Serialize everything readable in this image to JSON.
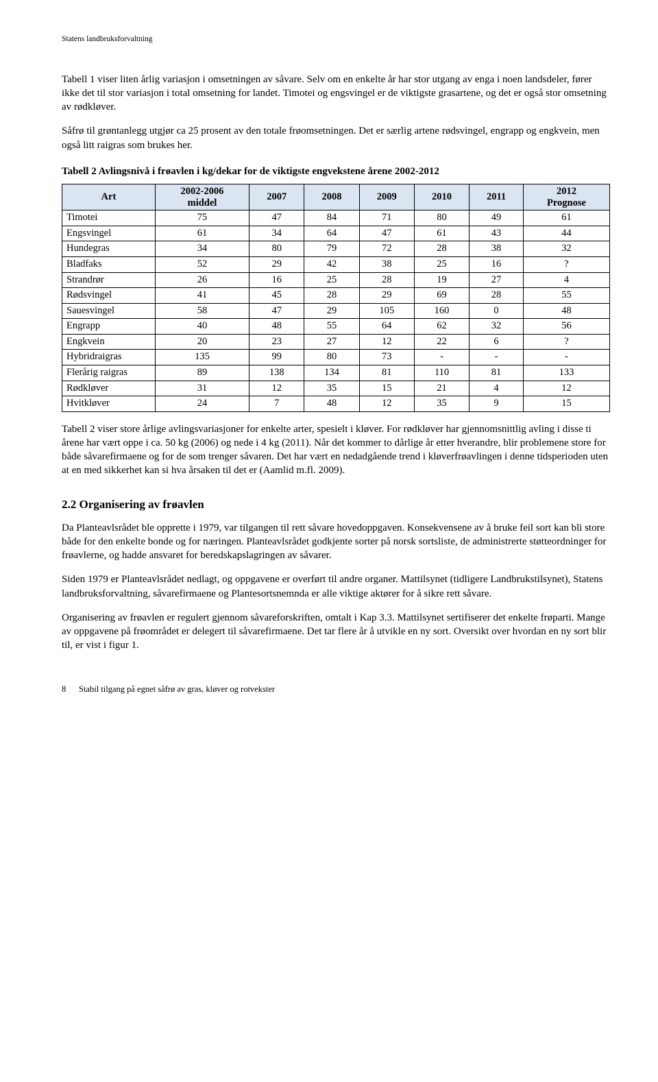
{
  "header": {
    "org": "Statens landbruksforvaltning"
  },
  "para1": "Tabell 1 viser liten årlig variasjon i omsetningen av såvare. Selv om en enkelte år har stor utgang av enga i noen landsdeler, fører ikke det til stor variasjon i total omsetning for landet. Timotei og engsvingel er de viktigste grasartene, og det er også stor omsetning av rødkløver.",
  "para2": "Såfrø til grøntanlegg utgjør ca 25 prosent av den totale frøomsetningen. Det er særlig artene rødsvingel, engrapp og engkvein, men også litt raigras som brukes her.",
  "table": {
    "title": "Tabell 2 Avlingsnivå i frøavlen i kg/dekar for de viktigste engvekstene årene 2002-2012",
    "columns": {
      "c0": "Art",
      "c1a": "2002-2006",
      "c1b": "middel",
      "c2": "2007",
      "c3": "2008",
      "c4": "2009",
      "c5": "2010",
      "c6": "2011",
      "c7a": "2012",
      "c7b": "Prognose"
    },
    "rows": [
      {
        "label": "Timotei",
        "v": [
          "75",
          "47",
          "84",
          "71",
          "80",
          "49",
          "61"
        ]
      },
      {
        "label": "Engsvingel",
        "v": [
          "61",
          "34",
          "64",
          "47",
          "61",
          "43",
          "44"
        ]
      },
      {
        "label": "Hundegras",
        "v": [
          "34",
          "80",
          "79",
          "72",
          "28",
          "38",
          "32"
        ]
      },
      {
        "label": "Bladfaks",
        "v": [
          "52",
          "29",
          "42",
          "38",
          "25",
          "16",
          "?"
        ]
      },
      {
        "label": "Strandrør",
        "v": [
          "26",
          "16",
          "25",
          "28",
          "19",
          "27",
          "4"
        ]
      },
      {
        "label": "Rødsvingel",
        "v": [
          "41",
          "45",
          "28",
          "29",
          "69",
          "28",
          "55"
        ]
      },
      {
        "label": "Sauesvingel",
        "v": [
          "58",
          "47",
          "29",
          "105",
          "160",
          "0",
          "48"
        ]
      },
      {
        "label": "Engrapp",
        "v": [
          "40",
          "48",
          "55",
          "64",
          "62",
          "32",
          "56"
        ]
      },
      {
        "label": "Engkvein",
        "v": [
          "20",
          "23",
          "27",
          "12",
          "22",
          "6",
          "?"
        ]
      },
      {
        "label": "Hybridraigras",
        "v": [
          "135",
          "99",
          "80",
          "73",
          "-",
          "-",
          "-"
        ]
      },
      {
        "label": "Flerårig raigras",
        "v": [
          "89",
          "138",
          "134",
          "81",
          "110",
          "81",
          "133"
        ]
      },
      {
        "label": "Rødkløver",
        "v": [
          "31",
          "12",
          "35",
          "15",
          "21",
          "4",
          "12"
        ]
      },
      {
        "label": "Hvitkløver",
        "v": [
          "24",
          "7",
          "48",
          "12",
          "35",
          "9",
          "15"
        ]
      }
    ],
    "header_bg": "#dbe5f1",
    "border_color": "#000000"
  },
  "para3": "Tabell 2 viser store årlige avlingsvariasjoner for enkelte arter, spesielt i kløver. For rødkløver har gjennomsnittlig avling i disse ti årene har vært oppe i ca. 50 kg (2006) og nede i 4 kg (2011). Når det kommer to dårlige år etter hverandre, blir problemene store for både såvarefirmaene og for de som trenger såvaren. Det har vært en nedadgående trend i kløverfrøavlingen i denne tidsperioden uten at en med sikkerhet kan si hva årsaken til det er (Aamlid m.fl. 2009).",
  "section": {
    "heading": "2.2  Organisering av frøavlen",
    "p1": "Da Planteavlsrådet ble opprette i 1979, var tilgangen til rett såvare hovedoppgaven. Konsekvensene av å bruke feil sort kan bli store både for den enkelte bonde og for næringen. Planteavlsrådet godkjente sorter på norsk sortsliste, de administrerte støtteordninger for frøavlerne, og hadde ansvaret for beredskapslagringen av såvarer.",
    "p2": "Siden 1979 er Planteavlsrådet nedlagt, og oppgavene er overført til andre organer. Mattilsynet (tidligere Landbrukstilsynet), Statens landbruksforvaltning, såvarefirmaene og Plantesortsnemnda er alle viktige aktører for å sikre rett såvare.",
    "p3": "Organisering av frøavlen er regulert gjennom såvareforskriften, omtalt i Kap 3.3. Mattilsynet sertifiserer det enkelte frøparti. Mange av oppgavene på frøområdet er delegert til såvarefirmaene. Det tar flere år å utvikle en ny sort. Oversikt over hvordan en ny sort blir til, er vist i figur 1."
  },
  "footer": {
    "page": "8",
    "title": "Stabil tilgang på egnet såfrø av gras, kløver og rotvekster"
  }
}
